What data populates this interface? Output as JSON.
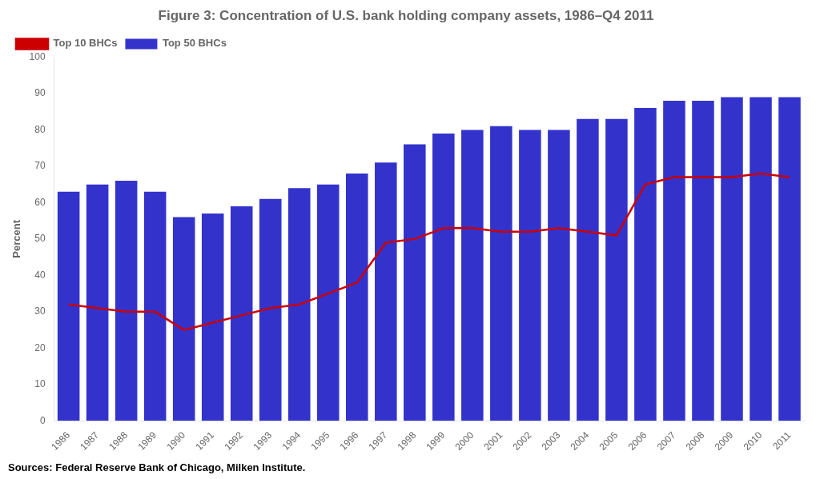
{
  "chart_data": {
    "type": "bar",
    "title": "Figure 3: Concentration of U.S. bank holding company assets, 1986–Q4 2011",
    "ylabel": "Percent",
    "annotation": "Sources: Federal Reserve Bank of Chicago, Milken Institute.",
    "categories": [
      "1986",
      "1987",
      "1988",
      "1989",
      "1990",
      "1991",
      "1992",
      "1993",
      "1994",
      "1995",
      "1996",
      "1997",
      "1998",
      "1999",
      "2000",
      "2001",
      "2002",
      "2003",
      "2004",
      "2005",
      "2006",
      "2007",
      "2008",
      "2009",
      "2010",
      "2011"
    ],
    "series": [
      {
        "name": "Top 50 BHCs",
        "type": "bar",
        "color": "#3333cc",
        "values": [
          63,
          65,
          66,
          63,
          56,
          57,
          59,
          61,
          64,
          65,
          68,
          71,
          76,
          79,
          80,
          81,
          80,
          80,
          83,
          83,
          86,
          88,
          88,
          89,
          89,
          89
        ]
      },
      {
        "name": "Top 10 BHCs",
        "type": "line",
        "color": "#cc0000",
        "values": [
          32,
          31,
          30,
          30,
          25,
          27,
          29,
          31,
          32,
          35,
          38,
          49,
          50,
          53,
          53,
          52,
          52,
          53,
          52,
          51,
          65,
          67,
          67,
          67,
          68,
          67
        ]
      }
    ],
    "ylim": [
      0,
      100
    ],
    "yticks": [
      0,
      10,
      20,
      30,
      40,
      50,
      60,
      70,
      80,
      90,
      100
    ],
    "grid": false,
    "legend": "upper left"
  }
}
